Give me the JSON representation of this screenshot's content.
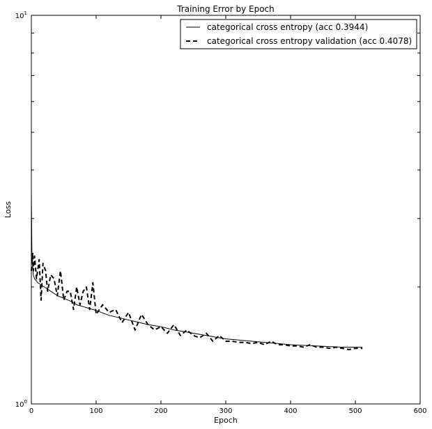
{
  "chart_data": {
    "type": "line",
    "title": "Training Error by Epoch",
    "xlabel": "Epoch",
    "ylabel": "Loss",
    "xlim": [
      0,
      600
    ],
    "ylim": [
      1,
      10
    ],
    "yscale": "log",
    "grid": false,
    "legend_position": "top-right",
    "x_ticks": [
      "0",
      "100",
      "200",
      "300",
      "400",
      "500",
      "600"
    ],
    "y_ticks": [
      {
        "base": "10",
        "exp": "0",
        "value": 1
      },
      {
        "base": "10",
        "exp": "1",
        "value": 10
      }
    ],
    "series": [
      {
        "name": "categorical cross entropy (acc 0.3944)",
        "style": "solid",
        "color": "#000000",
        "x": [
          0,
          1,
          2,
          3,
          5,
          10,
          20,
          30,
          40,
          50,
          60,
          70,
          80,
          90,
          100,
          120,
          140,
          160,
          180,
          200,
          220,
          240,
          260,
          280,
          300,
          320,
          340,
          360,
          380,
          400,
          420,
          440,
          460,
          480,
          500,
          511
        ],
        "y": [
          3.5,
          2.35,
          2.25,
          2.15,
          2.1,
          2.05,
          2.0,
          1.95,
          1.9,
          1.87,
          1.84,
          1.8,
          1.78,
          1.76,
          1.74,
          1.69,
          1.66,
          1.63,
          1.6,
          1.58,
          1.55,
          1.53,
          1.51,
          1.49,
          1.47,
          1.46,
          1.45,
          1.44,
          1.43,
          1.42,
          1.415,
          1.41,
          1.405,
          1.4,
          1.4,
          1.4
        ]
      },
      {
        "name": "categorical cross entropy validation (acc 0.4078)",
        "style": "dashed",
        "color": "#000000",
        "x": [
          0,
          1,
          2,
          3,
          5,
          8,
          12,
          15,
          18,
          22,
          25,
          30,
          35,
          40,
          45,
          50,
          55,
          60,
          65,
          70,
          75,
          80,
          85,
          90,
          95,
          100,
          110,
          120,
          130,
          140,
          150,
          160,
          170,
          180,
          190,
          200,
          210,
          220,
          230,
          240,
          250,
          260,
          270,
          280,
          290,
          300,
          310,
          320,
          330,
          340,
          350,
          360,
          370,
          380,
          390,
          400,
          410,
          420,
          430,
          440,
          450,
          460,
          470,
          480,
          490,
          500,
          511
        ],
        "y": [
          2.2,
          2.3,
          2.45,
          2.2,
          2.4,
          2.1,
          2.35,
          1.85,
          2.3,
          2.2,
          1.95,
          2.15,
          2.1,
          1.9,
          2.2,
          1.85,
          1.95,
          1.95,
          1.75,
          2.0,
          1.8,
          1.95,
          2.0,
          1.75,
          2.05,
          1.7,
          1.8,
          1.72,
          1.75,
          1.62,
          1.72,
          1.55,
          1.7,
          1.6,
          1.55,
          1.58,
          1.52,
          1.6,
          1.5,
          1.55,
          1.5,
          1.48,
          1.52,
          1.45,
          1.5,
          1.45,
          1.45,
          1.44,
          1.44,
          1.43,
          1.44,
          1.42,
          1.45,
          1.42,
          1.42,
          1.41,
          1.41,
          1.4,
          1.42,
          1.4,
          1.4,
          1.39,
          1.4,
          1.39,
          1.38,
          1.39,
          1.39
        ]
      }
    ]
  }
}
